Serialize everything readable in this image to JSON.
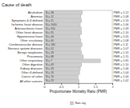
{
  "chart_data": {
    "type": "bar",
    "orientation": "horizontal",
    "title": "Cause of death",
    "x_label": "Proportionate Mortality Ratio (PMR)",
    "categories": [
      "Alcoholism",
      "Anemias",
      "Symptoms & ill-defined",
      "Ischemic heart disease",
      "Arteriosclerotic heart",
      "Other heart disease",
      "Hypertensive heart",
      "Other circulatory",
      "Cerebrovascular disease",
      "Nervous system diseases",
      "Benign neoplasms",
      "Pneumonia",
      "Other respiratory",
      "Other digestive",
      "Kidney diseases",
      "Other ill-defined",
      "Cancer of colon",
      "All other cancers"
    ],
    "values": [
      1.12,
      1.08,
      1.1,
      1.06,
      1.09,
      1.1,
      1.05,
      1.08,
      1.11,
      1.07,
      1.1,
      1.15,
      1.65,
      1.1,
      1.06,
      1.04,
      1.0,
      1.02
    ],
    "value_labels": [
      "PMR = 1.12",
      "PMR = 1.08",
      "PMR = 1.10",
      "PMR = 1.06",
      "PMR = 1.09",
      "PMR = 1.10",
      "PMR = 1.05",
      "PMR = 1.08",
      "PMR = 1.11",
      "PMR = 1.07",
      "PMR = 1.10",
      "PMR = 1.15",
      "PMR = 1.65",
      "PMR = 1.10",
      "PMR = 1.06",
      "PMR = 1.04",
      "PMR = 1.00",
      "PMR = 1.02"
    ],
    "data_labels": true,
    "n_labels": [
      "N = 38",
      "N = 12",
      "N = 21",
      "N = 1040",
      "N = 310",
      "N = 95",
      "N = 44",
      "N = 60",
      "N = 180",
      "N = 52",
      "N = 18",
      "N = 88",
      "N = 7",
      "N = 49",
      "N = 33",
      "N = 26",
      "N = 70",
      "N = 29"
    ],
    "series": [
      {
        "name": "Non-sig",
        "color": "#cfcfcf"
      }
    ],
    "xlim": [
      0,
      2
    ],
    "xticks": [
      0,
      0.5,
      1,
      1.5,
      2
    ],
    "grid": false,
    "legend": "bottom"
  }
}
